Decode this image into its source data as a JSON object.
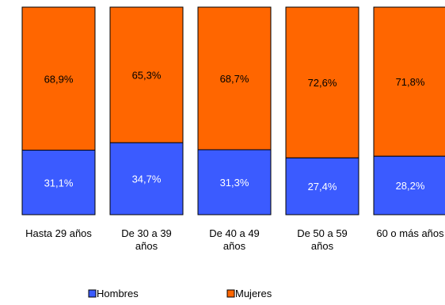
{
  "chart_data": {
    "type": "bar",
    "stacked": true,
    "percent": true,
    "categories": [
      [
        "Hasta 29 años"
      ],
      [
        "De 30 a 39",
        "años"
      ],
      [
        "De 40 a 49",
        "años"
      ],
      [
        "De 50 a 59",
        "años"
      ],
      [
        "60 o más años"
      ]
    ],
    "series": [
      {
        "name": "Hombres",
        "color": "#3b5bff",
        "label_color": "#ffffff",
        "values": [
          31.1,
          34.7,
          31.3,
          27.4,
          28.2
        ],
        "labels": [
          "31,1%",
          "34,7%",
          "31,3%",
          "27,4%",
          "28,2%"
        ]
      },
      {
        "name": "Mujeres",
        "color": "#ff6600",
        "label_color": "#000000",
        "values": [
          68.9,
          65.3,
          68.7,
          72.6,
          71.8
        ],
        "labels": [
          "68,9%",
          "65,3%",
          "68,7%",
          "72,6%",
          "71,8%"
        ]
      }
    ],
    "ylim": [
      0,
      100
    ],
    "grid": false,
    "legend_position": "bottom"
  }
}
